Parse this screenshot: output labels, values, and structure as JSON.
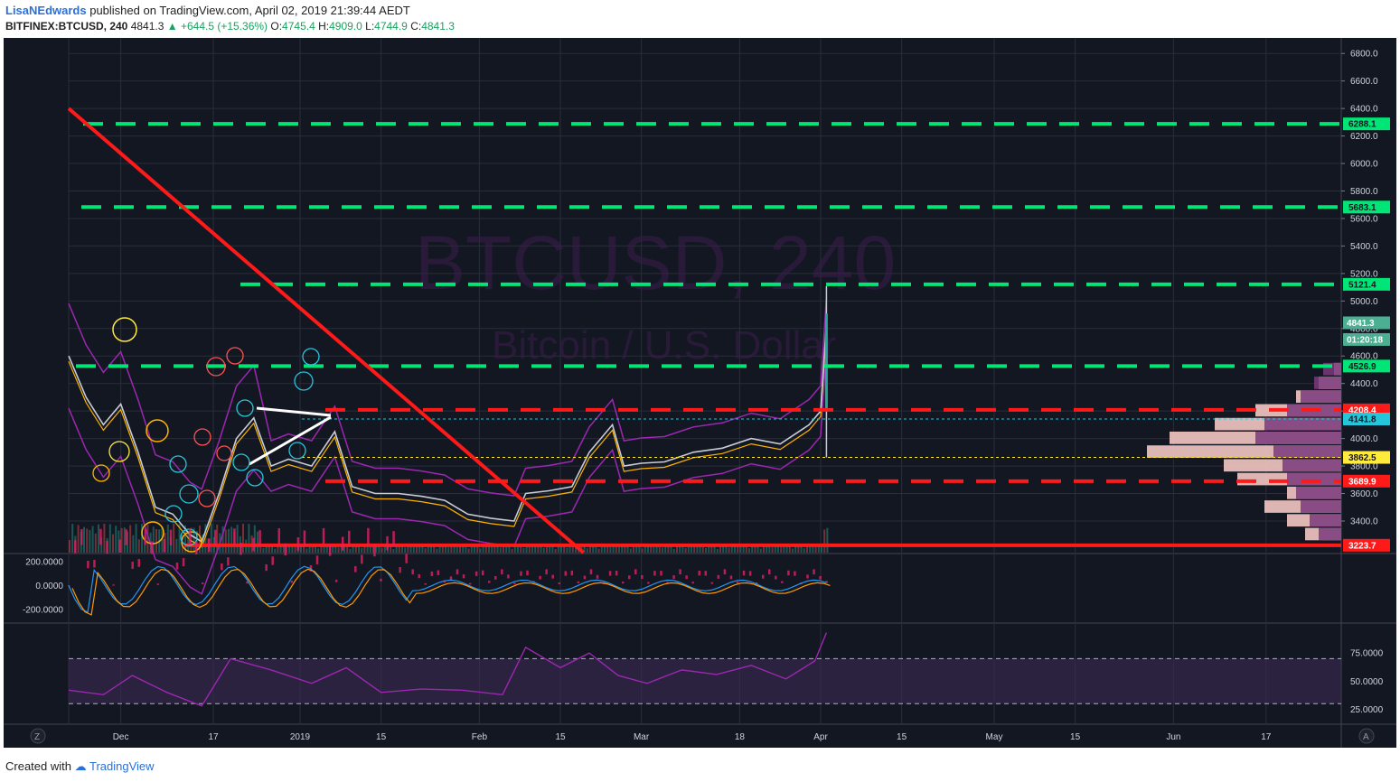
{
  "header": {
    "user": "LisaNEdwards",
    "published": "published on TradingView.com, April 02, 2019 21:39:44 AEDT",
    "symbol": "BITFINEX:BTCUSD, 240",
    "last": "4841.3",
    "change": "▲ +644.5 (+15.36%)",
    "o_label": "O:",
    "o": "4745.4",
    "h_label": "H:",
    "h": "4909.0",
    "l_label": "L:",
    "l": "4744.9",
    "c_label": "C:",
    "c": "4841.3"
  },
  "footer": {
    "created": "Created with",
    "brand": "TradingView"
  },
  "watermark": {
    "symbol": "BTCUSD, 240",
    "name": "Bitcoin / U.S. Dollar"
  },
  "colors": {
    "background": "#131722",
    "grid": "#2a2e39",
    "resistance": "#00e676",
    "support": "#ff1a1a",
    "trendline": "#ff1a1a",
    "bands": "#9c27b0",
    "rsi": "#9c27b0",
    "macd_hist": "#e91e63"
  },
  "chart_data": {
    "type": "line",
    "price_axis": {
      "ylim": [
        3170,
        6900
      ],
      "ticks": [
        "6800.0",
        "6600.0",
        "6400.0",
        "6200.0",
        "6000.0",
        "5800.0",
        "5600.0",
        "5400.0",
        "5200.0",
        "5000.0",
        "4800.0",
        "4600.0",
        "4400.0",
        "4200.0",
        "4000.0",
        "3800.0",
        "3600.0",
        "3400.0"
      ]
    },
    "x_axis": {
      "ticks": [
        "Dec",
        "17",
        "2019",
        "15",
        "Feb",
        "15",
        "Mar",
        "18",
        "Apr",
        "15",
        "May",
        "15",
        "Jun",
        "17"
      ],
      "tick_dates": [
        "2018-12-01",
        "2018-12-17",
        "2019-01-01",
        "2019-01-15",
        "2019-02-01",
        "2019-02-15",
        "2019-03-01",
        "2019-03-18",
        "2019-04-01",
        "2019-04-15",
        "2019-05-01",
        "2019-05-15",
        "2019-06-01",
        "2019-06-17"
      ],
      "range": [
        "2018-11-22",
        "2019-06-30"
      ]
    },
    "horizontal_levels": [
      {
        "value": 6288.1,
        "label": "6288.1",
        "style": "dashed",
        "color": "#00e676"
      },
      {
        "value": 5683.1,
        "label": "5683.1",
        "style": "dashed",
        "color": "#00e676"
      },
      {
        "value": 5121.4,
        "label": "5121.4",
        "style": "dashed",
        "color": "#00e676"
      },
      {
        "value": 4526.9,
        "label": "4526.9",
        "style": "dashed",
        "color": "#00e676"
      },
      {
        "value": 4208.4,
        "label": "4208.4",
        "style": "dashed",
        "color": "#ff1a1a"
      },
      {
        "value": 4141.8,
        "label": "4141.8",
        "style": "dotted",
        "color": "#26c6da"
      },
      {
        "value": 3862.5,
        "label": "3862.5",
        "style": "dotted",
        "color": "#ffeb3b"
      },
      {
        "value": 3689.9,
        "label": "3689.9",
        "style": "dashed",
        "color": "#ff1a1a"
      },
      {
        "value": 3223.7,
        "label": "3223.7",
        "style": "solid",
        "color": "#ff1a1a"
      }
    ],
    "price_labels": [
      {
        "value": 4841.3,
        "label": "4841.3",
        "color": "#4caf92"
      },
      {
        "value": 4720,
        "label": "01:20:18",
        "color": "#4caf92"
      }
    ],
    "trendline": {
      "from": [
        "2018-11-22",
        6400
      ],
      "to": [
        "2019-02-19",
        3170
      ]
    },
    "price_series": {
      "dates": [
        "2018-11-22",
        "2018-11-25",
        "2018-11-28",
        "2018-12-01",
        "2018-12-04",
        "2018-12-07",
        "2018-12-10",
        "2018-12-13",
        "2018-12-15",
        "2018-12-18",
        "2018-12-21",
        "2018-12-24",
        "2018-12-27",
        "2018-12-30",
        "2019-01-03",
        "2019-01-07",
        "2019-01-10",
        "2019-01-14",
        "2019-01-18",
        "2019-01-22",
        "2019-01-26",
        "2019-01-30",
        "2019-02-03",
        "2019-02-07",
        "2019-02-09",
        "2019-02-13",
        "2019-02-17",
        "2019-02-20",
        "2019-02-24",
        "2019-02-26",
        "2019-03-01",
        "2019-03-05",
        "2019-03-10",
        "2019-03-15",
        "2019-03-20",
        "2019-03-25",
        "2019-03-30",
        "2019-04-01",
        "2019-04-02"
      ],
      "values": [
        4600,
        4300,
        4100,
        4250,
        3900,
        3500,
        3450,
        3300,
        3250,
        3600,
        4000,
        4150,
        3800,
        3850,
        3800,
        4050,
        3650,
        3600,
        3600,
        3580,
        3550,
        3450,
        3420,
        3400,
        3600,
        3620,
        3650,
        3900,
        4100,
        3800,
        3820,
        3830,
        3900,
        3930,
        4000,
        3960,
        4100,
        4200,
        4841.3
      ]
    },
    "volume_profile": {
      "levels": [
        4500,
        4400,
        4300,
        4200,
        4100,
        4000,
        3900,
        3800,
        3700,
        3600,
        3500,
        3400,
        3300
      ],
      "buy": [
        8,
        25,
        50,
        95,
        140,
        190,
        215,
        130,
        115,
        60,
        85,
        60,
        40
      ],
      "sell": [
        20,
        30,
        45,
        60,
        85,
        95,
        75,
        65,
        60,
        50,
        45,
        35,
        25
      ]
    },
    "macd": {
      "axis_ticks": [
        "200.0000",
        "0.0000",
        "-200.0000"
      ],
      "ylim": [
        -300,
        260
      ]
    },
    "rsi": {
      "axis_ticks": [
        "75.0000",
        "50.0000",
        "25.0000"
      ],
      "ylim": [
        15,
        100
      ],
      "bands": [
        30,
        70
      ],
      "dates": [
        "2018-11-22",
        "2018-11-28",
        "2018-12-03",
        "2018-12-09",
        "2018-12-15",
        "2018-12-20",
        "2018-12-27",
        "2019-01-03",
        "2019-01-09",
        "2019-01-15",
        "2019-01-22",
        "2019-01-29",
        "2019-02-05",
        "2019-02-09",
        "2019-02-15",
        "2019-02-20",
        "2019-02-25",
        "2019-03-02",
        "2019-03-08",
        "2019-03-14",
        "2019-03-20",
        "2019-03-26",
        "2019-03-31",
        "2019-04-02"
      ],
      "values": [
        42,
        38,
        55,
        40,
        28,
        70,
        60,
        48,
        62,
        40,
        43,
        42,
        38,
        80,
        62,
        75,
        55,
        48,
        60,
        56,
        64,
        52,
        68,
        93
      ]
    }
  }
}
